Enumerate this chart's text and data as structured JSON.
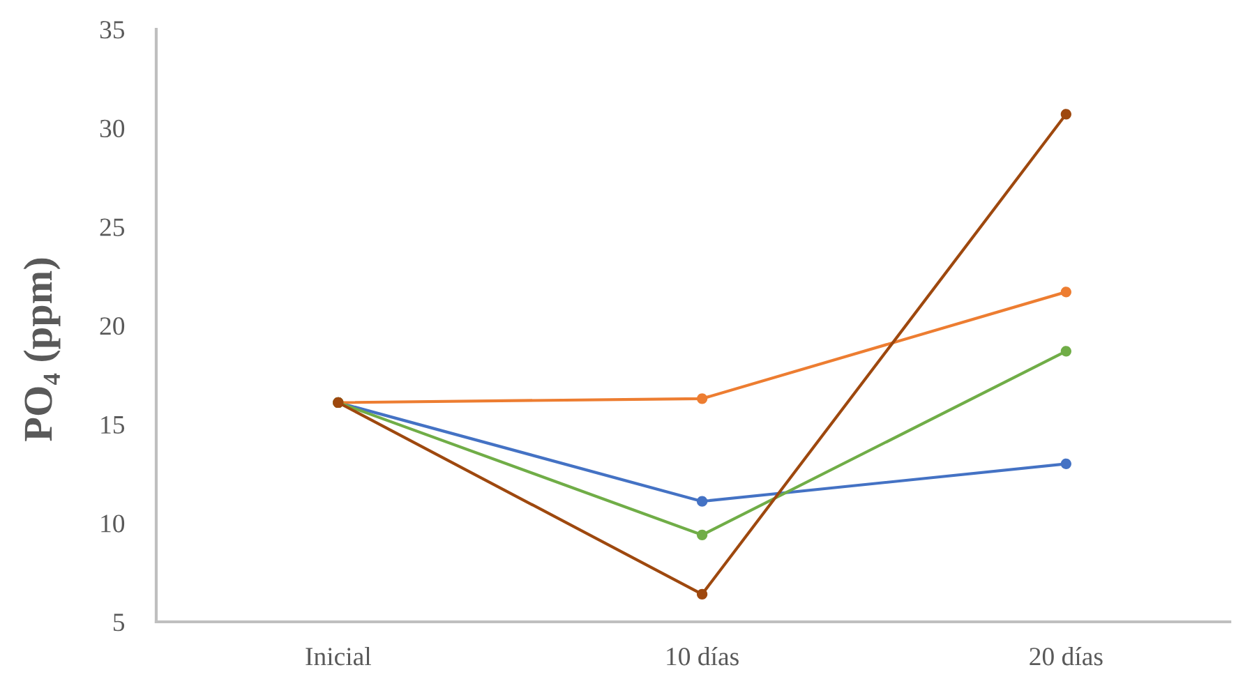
{
  "chart_data": {
    "type": "line",
    "ylabel": "PO₄ (ppm)",
    "categories": [
      "Inicial",
      "10 días",
      "20 días"
    ],
    "series": [
      {
        "color": "#4472c4",
        "values": [
          16.1,
          11.1,
          13.0
        ]
      },
      {
        "color": "#ed7d31",
        "values": [
          16.1,
          16.3,
          21.7
        ]
      },
      {
        "color": "#70ad47",
        "values": [
          16.1,
          9.4,
          18.7
        ]
      },
      {
        "color": "#9e480e",
        "values": [
          16.1,
          6.4,
          30.7
        ]
      }
    ],
    "ylim": [
      5,
      35
    ],
    "yticks": [
      5,
      10,
      15,
      20,
      25,
      30,
      35
    ],
    "marker": "circle",
    "line_style": "solid",
    "legend": false,
    "grid": false
  }
}
